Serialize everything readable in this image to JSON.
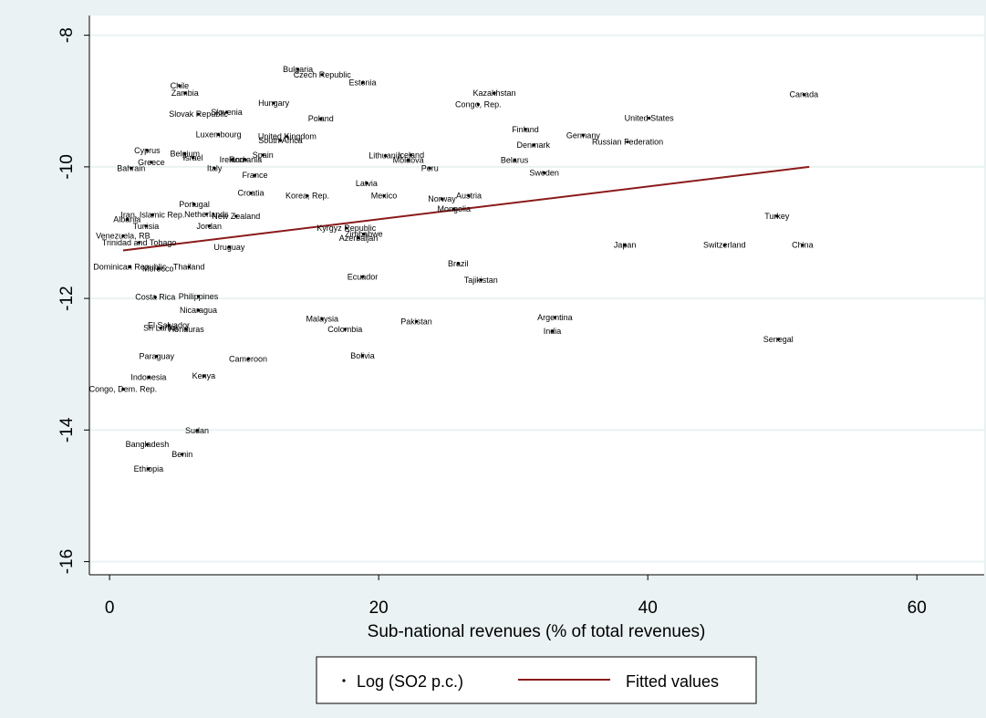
{
  "chart_data": {
    "type": "scatter",
    "xlabel": "Sub-national revenues (% of total revenues)",
    "ylabel": "",
    "xlim": [
      -1.5,
      65
    ],
    "ylim": [
      -16.2,
      -7.7
    ],
    "xticks": [
      0,
      20,
      40,
      60
    ],
    "yticks": [
      -8,
      -10,
      -12,
      -14,
      -16
    ],
    "grid": true,
    "legend_position": "bottom",
    "colors": {
      "points": "#000000",
      "fit": "#8b1a1a",
      "background": "#eaf2f3",
      "plot_bg": "#ffffff",
      "grid": "#eaf2f3"
    },
    "legend": [
      {
        "label": "Log (SO2 p.c.)",
        "kind": "point"
      },
      {
        "label": "Fitted values",
        "kind": "line"
      }
    ],
    "fitted_line": {
      "x": [
        1,
        52
      ],
      "y": [
        -11.27,
        -10.0
      ]
    },
    "points": [
      {
        "label": "Bulgaria",
        "x": 14,
        "y": -8.52
      },
      {
        "label": "Czech Republic",
        "x": 15.8,
        "y": -8.6
      },
      {
        "label": "Estonia",
        "x": 18.8,
        "y": -8.72
      },
      {
        "label": "Chile",
        "x": 5.2,
        "y": -8.77
      },
      {
        "label": "Zambia",
        "x": 5.6,
        "y": -8.88
      },
      {
        "label": "Kazakhstan",
        "x": 28.6,
        "y": -8.88
      },
      {
        "label": "Canada",
        "x": 51.6,
        "y": -8.9
      },
      {
        "label": "Hungary",
        "x": 12.2,
        "y": -9.03
      },
      {
        "label": "Congo, Rep.",
        "x": 27.4,
        "y": -9.05
      },
      {
        "label": "Slovenia",
        "x": 8.7,
        "y": -9.17
      },
      {
        "label": "Slovak Republic",
        "x": 6.6,
        "y": -9.2
      },
      {
        "label": "Poland",
        "x": 15.7,
        "y": -9.27
      },
      {
        "label": "United States",
        "x": 40.1,
        "y": -9.26
      },
      {
        "label": "Finland",
        "x": 30.9,
        "y": -9.43
      },
      {
        "label": "Germany",
        "x": 35.2,
        "y": -9.52
      },
      {
        "label": "Luxembourg",
        "x": 8.1,
        "y": -9.51
      },
      {
        "label": "United Kingdom",
        "x": 13.2,
        "y": -9.54
      },
      {
        "label": "South Africa",
        "x": 12.7,
        "y": -9.6
      },
      {
        "label": "Russian Federation",
        "x": 38.5,
        "y": -9.62
      },
      {
        "label": "Denmark",
        "x": 31.5,
        "y": -9.67
      },
      {
        "label": "Cyprus",
        "x": 2.8,
        "y": -9.75
      },
      {
        "label": "Belgium",
        "x": 5.6,
        "y": -9.8
      },
      {
        "label": "Israel",
        "x": 6.2,
        "y": -9.86
      },
      {
        "label": "Spain",
        "x": 11.4,
        "y": -9.82
      },
      {
        "label": "Lithuania",
        "x": 20.5,
        "y": -9.83
      },
      {
        "label": "Iceland",
        "x": 22.4,
        "y": -9.82
      },
      {
        "label": "Ireland",
        "x": 9.1,
        "y": -9.89
      },
      {
        "label": "Romania",
        "x": 10.1,
        "y": -9.89
      },
      {
        "label": "Moldova",
        "x": 22.2,
        "y": -9.9
      },
      {
        "label": "Belarus",
        "x": 30.1,
        "y": -9.9
      },
      {
        "label": "Greece",
        "x": 3.1,
        "y": -9.93
      },
      {
        "label": "Bahrain",
        "x": 1.6,
        "y": -10.02
      },
      {
        "label": "Italy",
        "x": 7.8,
        "y": -10.02
      },
      {
        "label": "Peru",
        "x": 23.8,
        "y": -10.02
      },
      {
        "label": "Sweden",
        "x": 32.3,
        "y": -10.09
      },
      {
        "label": "France",
        "x": 10.8,
        "y": -10.13
      },
      {
        "label": "Latvia",
        "x": 19.1,
        "y": -10.25
      },
      {
        "label": "Croatia",
        "x": 10.5,
        "y": -10.4
      },
      {
        "label": "Korea, Rep.",
        "x": 14.7,
        "y": -10.44
      },
      {
        "label": "Mexico",
        "x": 20.4,
        "y": -10.44
      },
      {
        "label": "Austria",
        "x": 26.7,
        "y": -10.44
      },
      {
        "label": "Norway",
        "x": 24.7,
        "y": -10.49
      },
      {
        "label": "Portugal",
        "x": 6.3,
        "y": -10.57
      },
      {
        "label": "Mongolia",
        "x": 25.6,
        "y": -10.64
      },
      {
        "label": "Iran, Islamic Rep.",
        "x": 3.2,
        "y": -10.73
      },
      {
        "label": "Netherlands",
        "x": 7.2,
        "y": -10.72
      },
      {
        "label": "New Zealand",
        "x": 9.4,
        "y": -10.75
      },
      {
        "label": "Turkey",
        "x": 49.6,
        "y": -10.75
      },
      {
        "label": "Albania",
        "x": 1.3,
        "y": -10.8
      },
      {
        "label": "Jordan",
        "x": 7.4,
        "y": -10.9
      },
      {
        "label": "Tunisia",
        "x": 2.7,
        "y": -10.9
      },
      {
        "label": "Kyrgyz Republic",
        "x": 17.6,
        "y": -10.93
      },
      {
        "label": "Zimbabwe",
        "x": 18.9,
        "y": -11.02
      },
      {
        "label": "Azerbaijan",
        "x": 18.5,
        "y": -11.08
      },
      {
        "label": "Venezuela, RB",
        "x": 1.0,
        "y": -11.05
      },
      {
        "label": "Trinidad and Tobago",
        "x": 2.2,
        "y": -11.15
      },
      {
        "label": "Japan",
        "x": 38.3,
        "y": -11.19
      },
      {
        "label": "Switzerland",
        "x": 45.7,
        "y": -11.19
      },
      {
        "label": "China",
        "x": 51.5,
        "y": -11.19
      },
      {
        "label": "Uruguay",
        "x": 8.9,
        "y": -11.22
      },
      {
        "label": "Brazil",
        "x": 25.9,
        "y": -11.47
      },
      {
        "label": "Dominican Republic",
        "x": 1.5,
        "y": -11.52
      },
      {
        "label": "Morocco",
        "x": 3.6,
        "y": -11.55
      },
      {
        "label": "Thailand",
        "x": 5.9,
        "y": -11.52
      },
      {
        "label": "Ecuador",
        "x": 18.8,
        "y": -11.67
      },
      {
        "label": "Tajikistan",
        "x": 27.6,
        "y": -11.72
      },
      {
        "label": "Costa Rica",
        "x": 3.4,
        "y": -11.98
      },
      {
        "label": "Philippines",
        "x": 6.6,
        "y": -11.97
      },
      {
        "label": "Nicaragua",
        "x": 6.6,
        "y": -12.18
      },
      {
        "label": "Malaysia",
        "x": 15.8,
        "y": -12.31
      },
      {
        "label": "Argentina",
        "x": 33.1,
        "y": -12.29
      },
      {
        "label": "Pakistan",
        "x": 22.8,
        "y": -12.35
      },
      {
        "label": "El Salvador",
        "x": 4.4,
        "y": -12.41
      },
      {
        "label": "Sri Lanka",
        "x": 3.8,
        "y": -12.45
      },
      {
        "label": "Honduras",
        "x": 5.7,
        "y": -12.47
      },
      {
        "label": "Colombia",
        "x": 17.5,
        "y": -12.47
      },
      {
        "label": "India",
        "x": 32.9,
        "y": -12.5
      },
      {
        "label": "Senegal",
        "x": 49.7,
        "y": -12.62
      },
      {
        "label": "Paraguay",
        "x": 3.5,
        "y": -12.88
      },
      {
        "label": "Bolivia",
        "x": 18.8,
        "y": -12.87
      },
      {
        "label": "Cameroon",
        "x": 10.3,
        "y": -12.92
      },
      {
        "label": "Indonesia",
        "x": 2.9,
        "y": -13.2
      },
      {
        "label": "Kenya",
        "x": 7.0,
        "y": -13.18
      },
      {
        "label": "Congo, Dem. Rep.",
        "x": 1.0,
        "y": -13.38
      },
      {
        "label": "Sudan",
        "x": 6.5,
        "y": -14.01
      },
      {
        "label": "Bangladesh",
        "x": 2.8,
        "y": -14.22
      },
      {
        "label": "Benin",
        "x": 5.4,
        "y": -14.37
      },
      {
        "label": "Ethiopia",
        "x": 2.9,
        "y": -14.59
      }
    ]
  }
}
